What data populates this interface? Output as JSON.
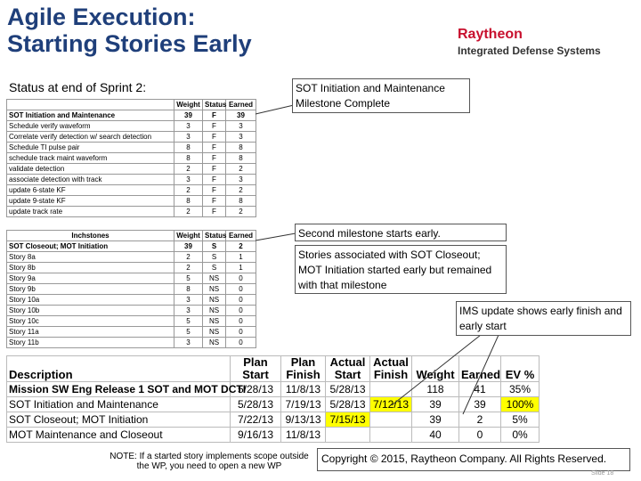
{
  "header": {
    "title_lines": [
      "Agile Execution:",
      "Starting Stories Early"
    ],
    "logo": "Raytheon",
    "division": "Integrated Defense Systems"
  },
  "subtitle": "Status at end of Sprint 2:",
  "callouts": [
    "SOT Initiation and Maintenance Milestone Complete",
    "Second milestone starts early.",
    "Stories associated with SOT Closeout; MOT Initiation started early but remained with that milestone",
    "IMS update shows early finish and early start"
  ],
  "table1": {
    "header": [
      "Weight",
      "Status",
      "Earned"
    ],
    "rows": [
      [
        "SOT Initiation and Maintenance",
        39,
        "F",
        39
      ],
      [
        "Schedule verify waveform",
        3,
        "F",
        3
      ],
      [
        "Correlate verify detection w/ search detection",
        3,
        "F",
        3
      ],
      [
        "Schedule TI pulse pair",
        8,
        "F",
        8
      ],
      [
        "schedule track maint waveform",
        8,
        "F",
        8
      ],
      [
        "validate detection",
        2,
        "F",
        2
      ],
      [
        "associate detection with track",
        3,
        "F",
        3
      ],
      [
        "update 6-state KF",
        2,
        "F",
        2
      ],
      [
        "update 9-state KF",
        8,
        "F",
        8
      ],
      [
        "update track rate",
        2,
        "F",
        2
      ]
    ]
  },
  "table2": {
    "header": [
      "Inchstones",
      "Weight",
      "Status",
      "Earned"
    ],
    "rows": [
      [
        "SOT Closeout; MOT Initiation",
        39,
        "S",
        2
      ],
      [
        "Story 8a",
        2,
        "S",
        1
      ],
      [
        "Story 8b",
        2,
        "S",
        1
      ],
      [
        "Story 9a",
        5,
        "NS",
        0
      ],
      [
        "Story 9b",
        8,
        "NS",
        0
      ],
      [
        "Story 10a",
        3,
        "NS",
        0
      ],
      [
        "Story 10b",
        3,
        "NS",
        0
      ],
      [
        "Story 10c",
        5,
        "NS",
        0
      ],
      [
        "Story 11a",
        5,
        "NS",
        0
      ],
      [
        "Story 11b",
        3,
        "NS",
        0
      ]
    ]
  },
  "table3": {
    "header": [
      "Description",
      "Plan Start",
      "Plan Finish",
      "Actual Start",
      "Actual Finish",
      "Weight",
      "Earned",
      "EV %"
    ],
    "rows": [
      [
        "Mission SW Eng Release 1 SOT and MOT DCTI",
        "5/28/13",
        "11/8/13",
        "5/28/13",
        null,
        118,
        41,
        "35%"
      ],
      [
        "SOT Initiation and Maintenance",
        "5/28/13",
        "7/19/13",
        "5/28/13",
        "7/12/13",
        39,
        39,
        "100%"
      ],
      [
        "SOT Closeout; MOT Initiation",
        "7/22/13",
        "9/13/13",
        "7/15/13",
        null,
        39,
        2,
        "5%"
      ],
      [
        "MOT Maintenance and Closeout",
        "9/16/13",
        "11/8/13",
        null,
        null,
        40,
        0,
        "0%"
      ]
    ]
  },
  "note": "NOTE: If a started story implements scope outside the WP, you need to open a new WP",
  "footer": {
    "copyright": "Copyright © 2015, Raytheon Company. All Rights Reserved.",
    "slide": "Slide 18"
  }
}
